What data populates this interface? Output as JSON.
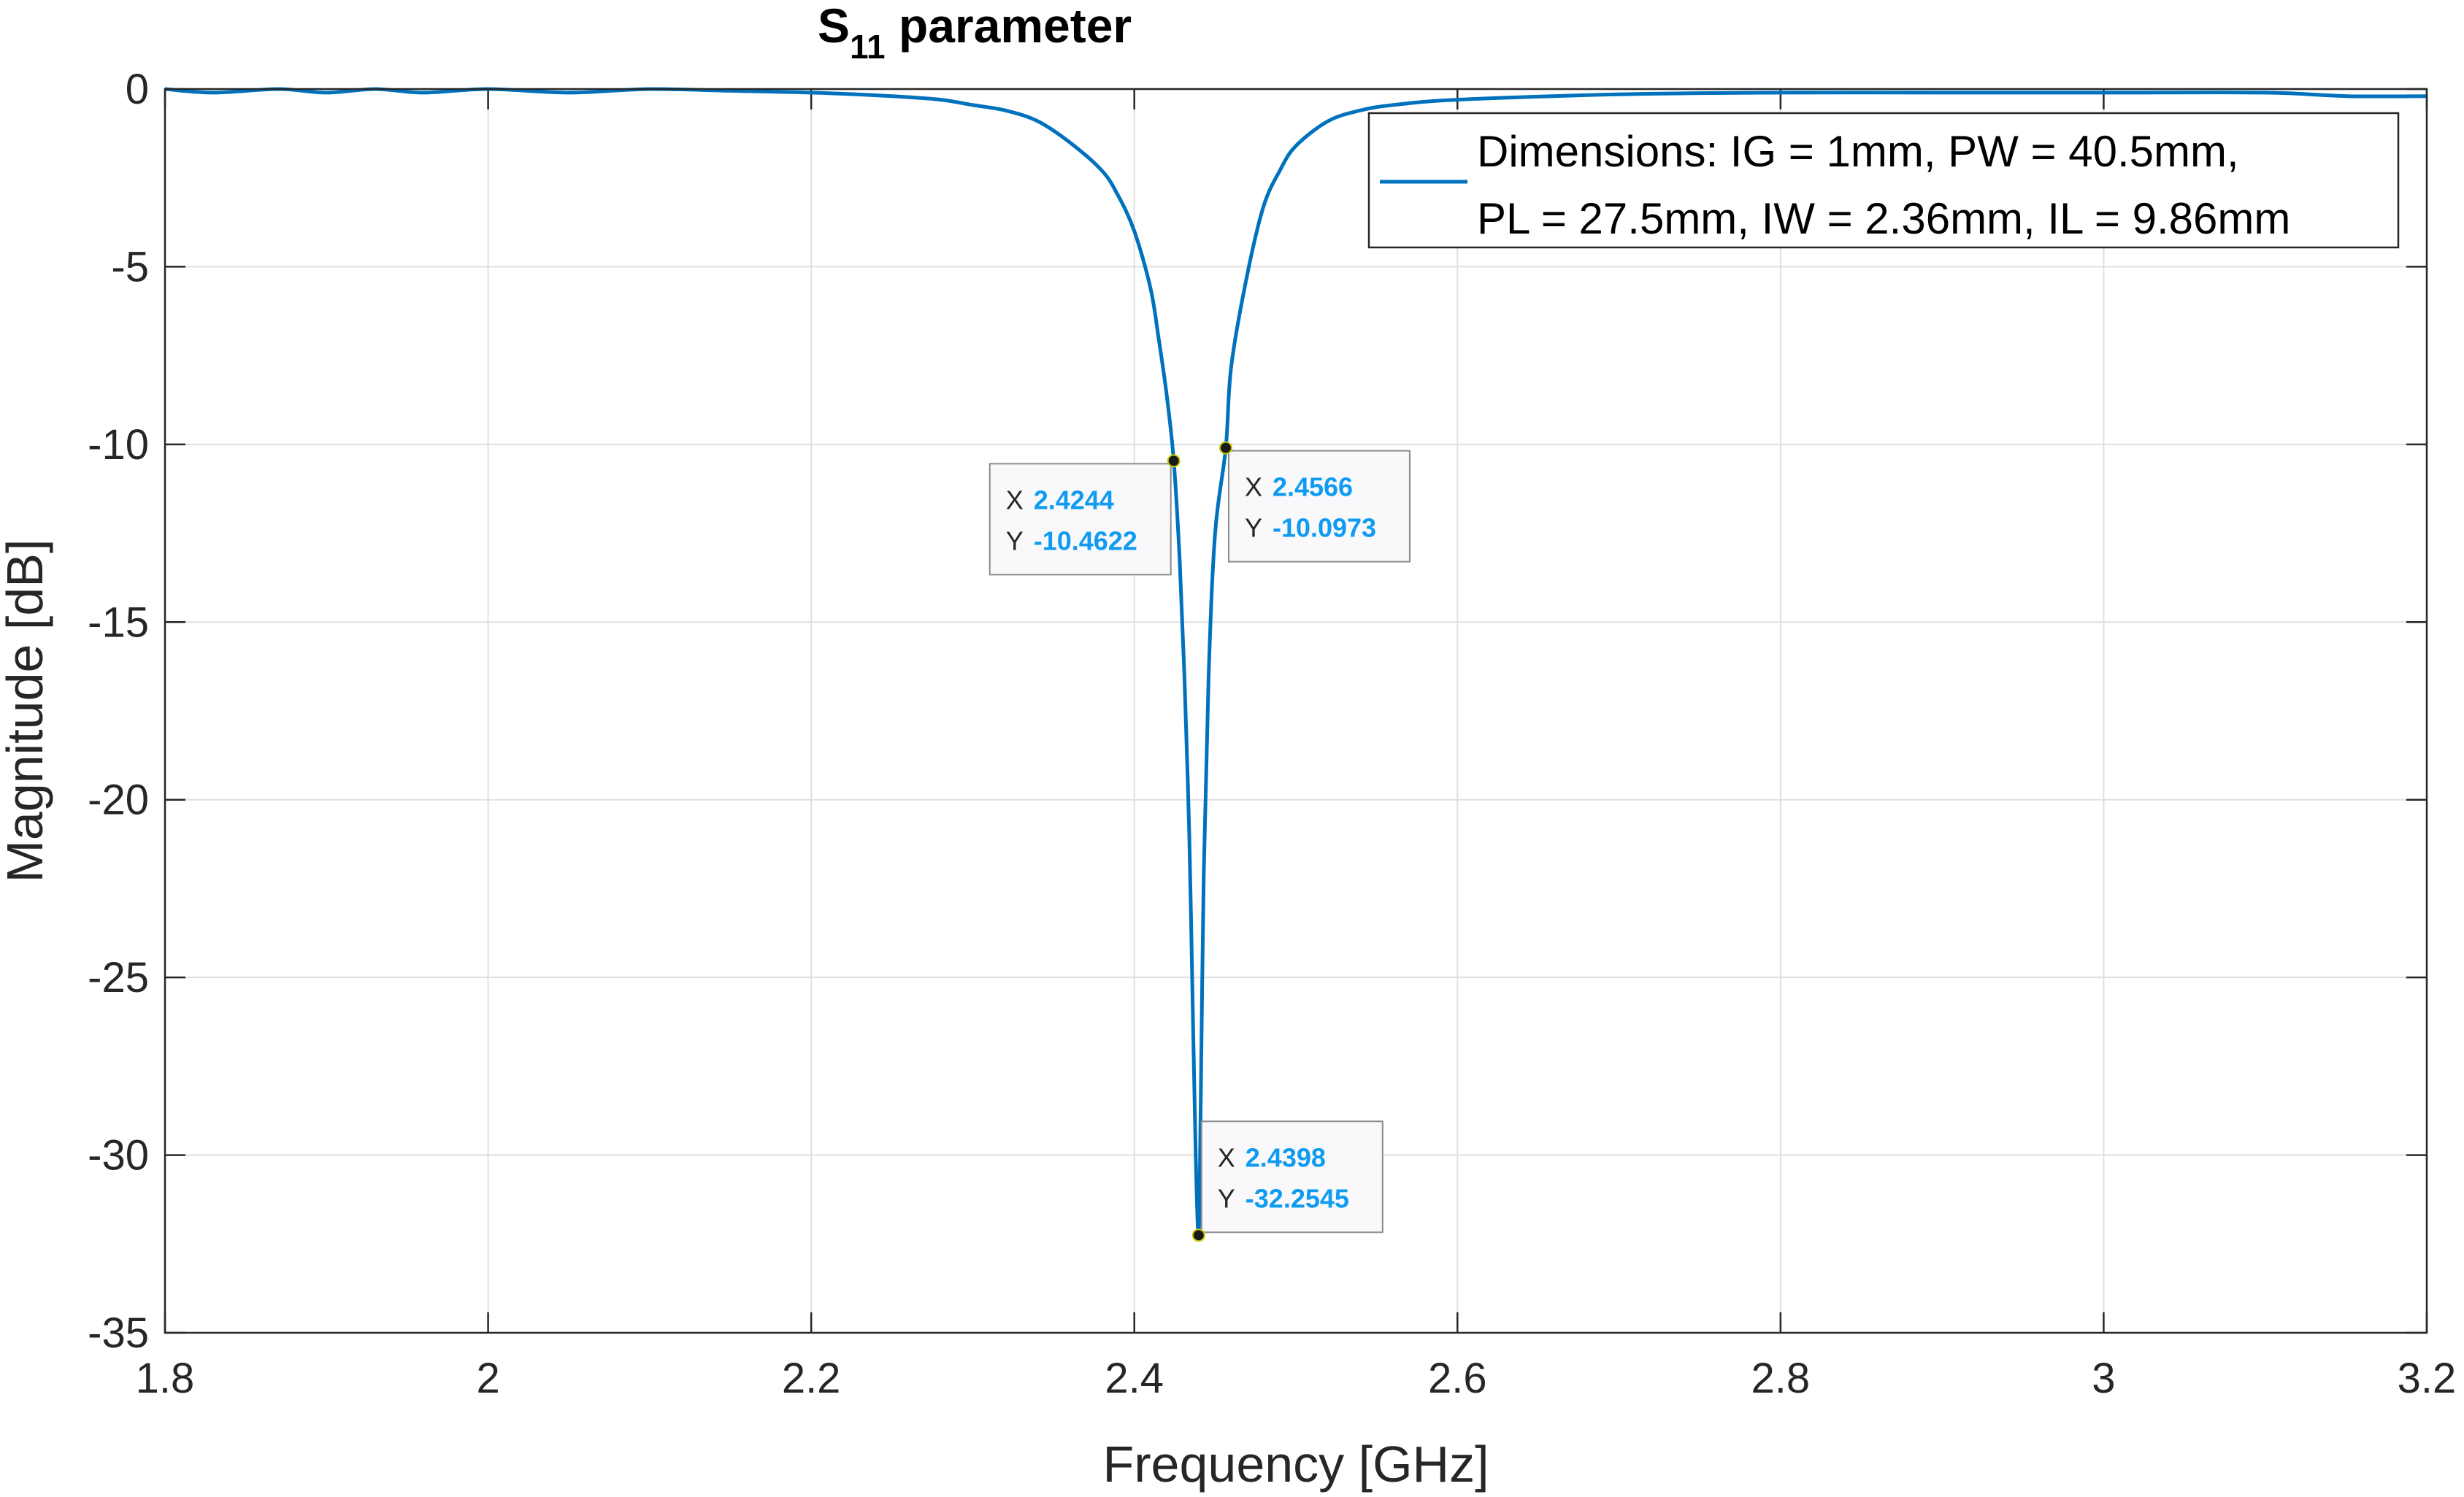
{
  "chart_data": {
    "type": "line",
    "title": "S",
    "title_subscript": "11",
    "title_rest": " parameter",
    "xlabel": "Frequency [GHz]",
    "ylabel": "Magnitude [dB]",
    "xlim": [
      1.8,
      3.2
    ],
    "ylim": [
      -35,
      0
    ],
    "xticks": [
      1.8,
      2,
      2.2,
      2.4,
      2.6,
      2.8,
      3,
      3.2
    ],
    "xtick_labels": [
      "1.8",
      "2",
      "2.2",
      "2.4",
      "2.6",
      "2.8",
      "3",
      "3.2"
    ],
    "yticks": [
      0,
      -5,
      -10,
      -15,
      -20,
      -25,
      -30,
      -35
    ],
    "ytick_labels": [
      "0",
      "-5",
      "-10",
      "-15",
      "-20",
      "-25",
      "-30",
      "-35"
    ],
    "grid": true,
    "line_color": "#0072bd",
    "legend": {
      "placement": "top-right",
      "line1": "Dimensions: IG = 1mm, PW = 40.5mm,",
      "line2": "PL = 27.5mm, IW = 2.36mm, IL = 9.86mm"
    },
    "series": [
      {
        "name": "Dimensions: IG = 1mm, PW = 40.5mm, PL = 27.5mm, IW = 2.36mm, IL = 9.86mm",
        "x": [
          1.8,
          1.83,
          1.87,
          1.9,
          1.93,
          1.96,
          2.0,
          2.05,
          2.1,
          2.15,
          2.2,
          2.25,
          2.28,
          2.3,
          2.32,
          2.34,
          2.36,
          2.38,
          2.39,
          2.4,
          2.41,
          2.415,
          2.42,
          2.4244,
          2.428,
          2.431,
          2.434,
          2.436,
          2.438,
          2.4398,
          2.441,
          2.443,
          2.446,
          2.45,
          2.4566,
          2.46,
          2.47,
          2.48,
          2.49,
          2.5,
          2.52,
          2.54,
          2.56,
          2.6,
          2.7,
          2.8,
          2.9,
          3.0,
          3.1,
          3.15,
          3.2
        ],
        "y": [
          0,
          -0.1,
          0,
          -0.1,
          0,
          -0.1,
          0,
          -0.1,
          0,
          -0.05,
          -0.1,
          -0.2,
          -0.3,
          -0.45,
          -0.6,
          -0.9,
          -1.5,
          -2.3,
          -3.0,
          -4.0,
          -5.6,
          -7.0,
          -8.6,
          -10.4622,
          -13.2,
          -16.5,
          -21.0,
          -25.5,
          -30.0,
          -32.2545,
          -29.0,
          -22.0,
          -16.5,
          -12.5,
          -10.0973,
          -7.8,
          -5.2,
          -3.3,
          -2.3,
          -1.6,
          -0.9,
          -0.6,
          -0.45,
          -0.3,
          -0.15,
          -0.1,
          -0.1,
          -0.1,
          -0.1,
          -0.2,
          -0.2
        ]
      }
    ],
    "datatips": [
      {
        "x_label": "X",
        "x_value": "2.4244",
        "y_label": "Y",
        "y_value": "-10.4622",
        "x": 2.4244,
        "y": -10.4622,
        "side": "left"
      },
      {
        "x_label": "X",
        "x_value": "2.4566",
        "y_label": "Y",
        "y_value": "-10.0973",
        "x": 2.4566,
        "y": -10.0973,
        "side": "right"
      },
      {
        "x_label": "X",
        "x_value": "2.4398",
        "y_label": "Y",
        "y_value": "-32.2545",
        "x": 2.4398,
        "y": -32.2545,
        "side": "right-up"
      }
    ]
  }
}
